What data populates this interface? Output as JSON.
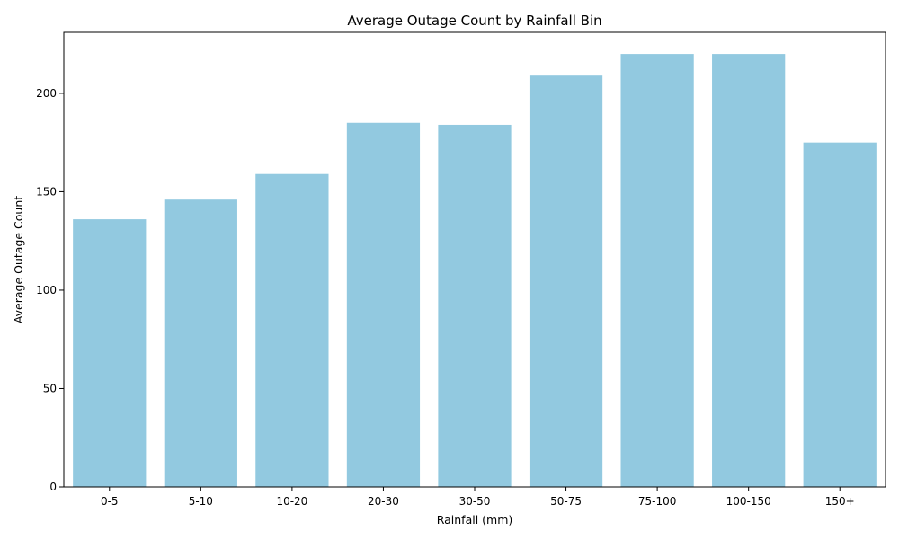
{
  "chart_data": {
    "type": "bar",
    "title": "Average Outage Count by Rainfall Bin",
    "xlabel": "Rainfall (mm)",
    "ylabel": "Average Outage Count",
    "categories": [
      "0-5",
      "5-10",
      "10-20",
      "20-30",
      "30-50",
      "50-75",
      "75-100",
      "100-150",
      "150+"
    ],
    "values": [
      136,
      146,
      159,
      185,
      184,
      209,
      220,
      220,
      175
    ],
    "ylim": [
      0,
      231
    ],
    "yticks": [
      0,
      50,
      100,
      150,
      200
    ],
    "bar_color": "#92c9e0",
    "grid": false,
    "legend": "none"
  }
}
